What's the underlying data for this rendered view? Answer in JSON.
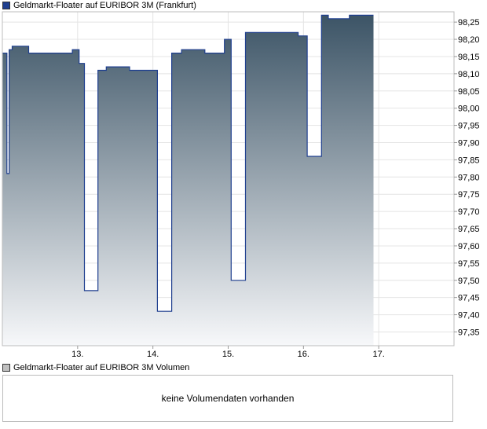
{
  "price_legend": {
    "label": "Geldmarkt-Floater auf EURIBOR 3M (Frankfurt)",
    "color": "#1f3f8f"
  },
  "volume_legend": {
    "label": "Geldmarkt-Floater auf EURIBOR 3M Volumen",
    "color": "#c0c0c0"
  },
  "volume_message": "keine Volumendaten vorhanden",
  "chart_data": {
    "type": "area",
    "title": "Geldmarkt-Floater auf EURIBOR 3M (Frankfurt)",
    "xlabel": "",
    "ylabel": "",
    "x_ticks": [
      {
        "label": "13.",
        "x": 13
      },
      {
        "label": "14.",
        "x": 14
      },
      {
        "label": "15.",
        "x": 15
      },
      {
        "label": "16.",
        "x": 16
      },
      {
        "label": "17.",
        "x": 17
      }
    ],
    "xlim": [
      12.0,
      18.0
    ],
    "y_ticks": [
      "98,25",
      "98,20",
      "98,15",
      "98,10",
      "98,05",
      "98,00",
      "97,95",
      "97,90",
      "97,85",
      "97,80",
      "97,75",
      "97,70",
      "97,65",
      "97,60",
      "97,55",
      "97,50",
      "97,45",
      "97,40",
      "97,35"
    ],
    "ylim": [
      97.31,
      98.28
    ],
    "grid": true,
    "series": [
      {
        "name": "Geldmarkt-Floater auf EURIBOR 3M (Frankfurt)",
        "color": "#1f3f8f",
        "step_points": [
          [
            12.0,
            98.16
          ],
          [
            12.06,
            98.16
          ],
          [
            12.06,
            97.81
          ],
          [
            12.09,
            97.81
          ],
          [
            12.09,
            98.17
          ],
          [
            12.13,
            98.17
          ],
          [
            12.13,
            98.18
          ],
          [
            12.35,
            98.18
          ],
          [
            12.35,
            98.16
          ],
          [
            12.93,
            98.16
          ],
          [
            12.93,
            98.17
          ],
          [
            13.02,
            98.17
          ],
          [
            13.02,
            98.13
          ],
          [
            13.09,
            98.13
          ],
          [
            13.09,
            97.47
          ],
          [
            13.27,
            97.47
          ],
          [
            13.27,
            98.11
          ],
          [
            13.38,
            98.11
          ],
          [
            13.38,
            98.12
          ],
          [
            13.69,
            98.12
          ],
          [
            13.69,
            98.11
          ],
          [
            14.06,
            98.11
          ],
          [
            14.06,
            97.41
          ],
          [
            14.25,
            97.41
          ],
          [
            14.25,
            98.16
          ],
          [
            14.38,
            98.16
          ],
          [
            14.38,
            98.17
          ],
          [
            14.69,
            98.17
          ],
          [
            14.69,
            98.16
          ],
          [
            14.95,
            98.16
          ],
          [
            14.95,
            98.2
          ],
          [
            15.04,
            98.2
          ],
          [
            15.04,
            97.5
          ],
          [
            15.23,
            97.5
          ],
          [
            15.23,
            98.22
          ],
          [
            15.93,
            98.22
          ],
          [
            15.93,
            98.21
          ],
          [
            16.05,
            98.21
          ],
          [
            16.05,
            97.86
          ],
          [
            16.24,
            97.86
          ],
          [
            16.24,
            98.27
          ],
          [
            16.33,
            98.27
          ],
          [
            16.33,
            98.26
          ],
          [
            16.61,
            98.26
          ],
          [
            16.61,
            98.27
          ],
          [
            16.93,
            98.27
          ]
        ]
      }
    ]
  }
}
